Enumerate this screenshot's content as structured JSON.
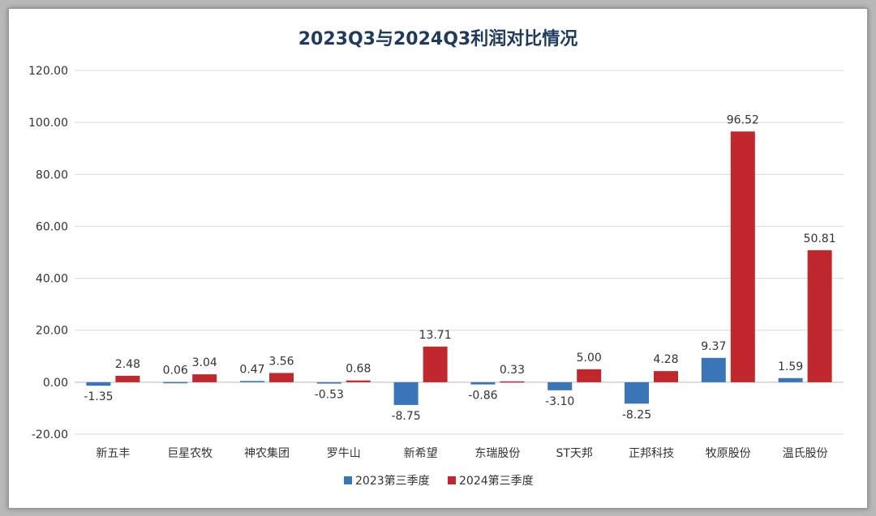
{
  "chart_data": {
    "type": "bar",
    "title": "2023Q3与2024Q3利润对比情况",
    "categories": [
      "新五丰",
      "巨星农牧",
      "神农集团",
      "罗牛山",
      "新希望",
      "东瑞股份",
      "ST天邦",
      "正邦科技",
      "牧原股份",
      "温氏股份"
    ],
    "series": [
      {
        "name": "2023第三季度",
        "color": "#3a75b8",
        "values": [
          -1.35,
          0.06,
          0.47,
          -0.53,
          -8.75,
          -0.86,
          -3.1,
          -8.25,
          9.37,
          1.59
        ]
      },
      {
        "name": "2024第三季度",
        "color": "#c0282d",
        "values": [
          2.48,
          3.04,
          3.56,
          0.68,
          13.71,
          0.33,
          5.0,
          4.28,
          96.52,
          50.81
        ]
      }
    ],
    "ylim": [
      -20,
      120
    ],
    "yticks": [
      "-20.00",
      "0.00",
      "20.00",
      "40.00",
      "60.00",
      "80.00",
      "100.00",
      "120.00"
    ],
    "value_labels": [
      [
        "-1.35",
        "0.06",
        "0.47",
        "-0.53",
        "-8.75",
        "-0.86",
        "-3.10",
        "-8.25",
        "9.37",
        "1.59"
      ],
      [
        "2.48",
        "3.04",
        "3.56",
        "0.68",
        "13.71",
        "0.33",
        "5.00",
        "4.28",
        "96.52",
        "50.81"
      ]
    ],
    "grid": true,
    "legend_position": "bottom"
  }
}
